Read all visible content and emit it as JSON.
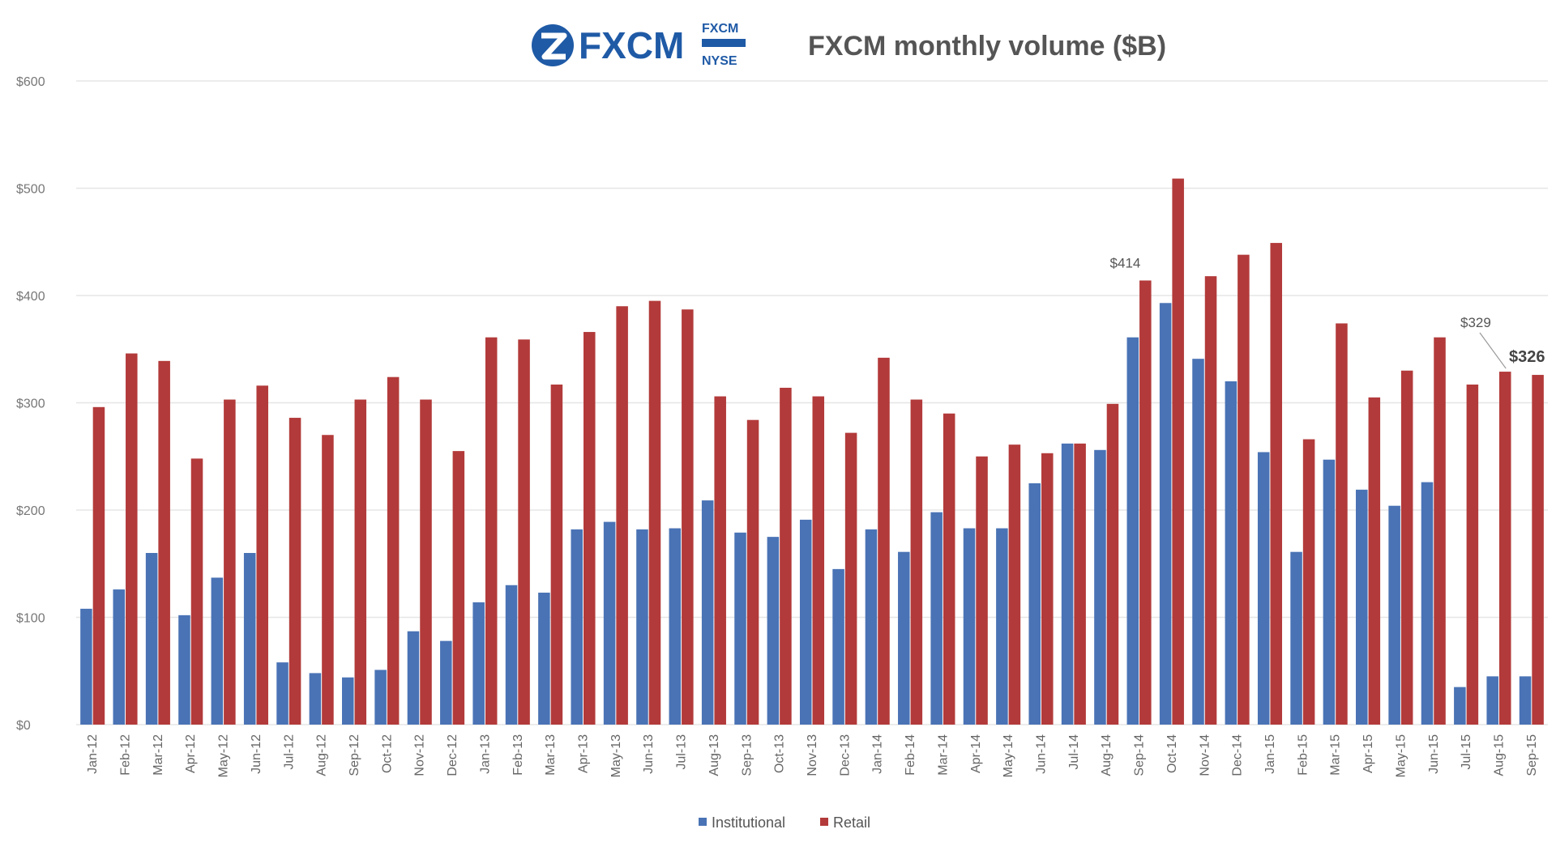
{
  "logo": {
    "brand": "FXCM",
    "badge_top": "FXCM",
    "badge_bottom": "NYSE"
  },
  "legend": {
    "institutional": "Institutional",
    "retail": "Retail"
  },
  "colors": {
    "institutional": "#4a73b5",
    "retail": "#b33a3a",
    "grid": "#e6e6e6",
    "brand": "#1f5aa6"
  },
  "chart_data": {
    "type": "bar",
    "title": "FXCM monthly volume ($B)",
    "xlabel": "",
    "ylabel": "",
    "ylim": [
      0,
      600
    ],
    "yticks": [
      0,
      100,
      200,
      300,
      400,
      500,
      600
    ],
    "ytick_labels": [
      "$0",
      "$100",
      "$200",
      "$300",
      "$400",
      "$500",
      "$600"
    ],
    "grid": true,
    "legend_position": "bottom",
    "categories": [
      "Jan-12",
      "Feb-12",
      "Mar-12",
      "Apr-12",
      "May-12",
      "Jun-12",
      "Jul-12",
      "Aug-12",
      "Sep-12",
      "Oct-12",
      "Nov-12",
      "Dec-12",
      "Jan-13",
      "Feb-13",
      "Mar-13",
      "Apr-13",
      "May-13",
      "Jun-13",
      "Jul-13",
      "Aug-13",
      "Sep-13",
      "Oct-13",
      "Nov-13",
      "Dec-13",
      "Jan-14",
      "Feb-14",
      "Mar-14",
      "Apr-14",
      "May-14",
      "Jun-14",
      "Jul-14",
      "Aug-14",
      "Sep-14",
      "Oct-14",
      "Nov-14",
      "Dec-14",
      "Jan-15",
      "Feb-15",
      "Mar-15",
      "Apr-15",
      "May-15",
      "Jun-15",
      "Jul-15",
      "Aug-15",
      "Sep-15"
    ],
    "series": [
      {
        "name": "Institutional",
        "values": [
          108,
          126,
          160,
          102,
          137,
          160,
          58,
          48,
          44,
          51,
          87,
          78,
          114,
          130,
          123,
          182,
          189,
          182,
          183,
          209,
          179,
          175,
          191,
          145,
          182,
          161,
          198,
          183,
          183,
          225,
          262,
          256,
          361,
          393,
          341,
          320,
          254,
          161,
          247,
          219,
          204,
          226,
          35,
          45,
          45
        ]
      },
      {
        "name": "Retail",
        "values": [
          296,
          346,
          339,
          248,
          303,
          316,
          286,
          270,
          303,
          324,
          303,
          255,
          361,
          359,
          317,
          366,
          390,
          395,
          387,
          306,
          284,
          314,
          306,
          272,
          342,
          303,
          290,
          250,
          261,
          253,
          262,
          299,
          414,
          509,
          418,
          438,
          449,
          266,
          374,
          305,
          330,
          361,
          317,
          329,
          326
        ]
      }
    ],
    "annotations": [
      {
        "label": "$414",
        "category": "Sep-14",
        "series": "Retail",
        "value": 414
      },
      {
        "label": "$329",
        "category": "Aug-15",
        "series": "Retail",
        "value": 329
      },
      {
        "label": "$326",
        "category": "Sep-15",
        "series": "Retail",
        "value": 326
      }
    ]
  }
}
